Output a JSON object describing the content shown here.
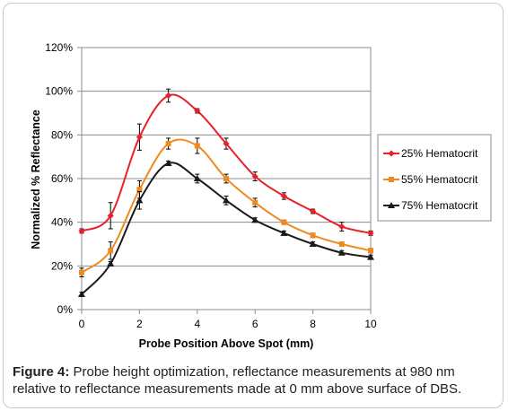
{
  "chart_data": {
    "type": "line",
    "xlabel": "Probe Position Above Spot (mm)",
    "ylabel": "Normalized % Reflectance",
    "xlim": [
      0,
      10
    ],
    "ylim": [
      0,
      120
    ],
    "xticks": [
      "0",
      "2",
      "4",
      "6",
      "8",
      "10"
    ],
    "yticks": [
      "0%",
      "20%",
      "40%",
      "60%",
      "80%",
      "100%",
      "120%"
    ],
    "grid": "horizontal",
    "legend_position": "right",
    "x": [
      0,
      1,
      2,
      3,
      4,
      5,
      6,
      7,
      8,
      9,
      10
    ],
    "series": [
      {
        "name": "25% Hematocrit",
        "color": "#e8202a",
        "marker": "diamond",
        "values": [
          36,
          43,
          79,
          98,
          91,
          76,
          61,
          52,
          45,
          38,
          35
        ],
        "errors": [
          1,
          6,
          6,
          3,
          1,
          2.5,
          2,
          1.5,
          1,
          2,
          1
        ]
      },
      {
        "name": "55% Hematocrit",
        "color": "#f08a1e",
        "marker": "square",
        "values": [
          17,
          27,
          55,
          76,
          75,
          60,
          49,
          40,
          34,
          30,
          27
        ],
        "errors": [
          2,
          4,
          4,
          2.5,
          3.5,
          2,
          2,
          1,
          1,
          1,
          1
        ]
      },
      {
        "name": "75% Hematocrit",
        "color": "#1a1a1a",
        "marker": "triangle",
        "values": [
          7,
          21,
          50,
          67,
          60,
          50,
          41,
          35,
          30,
          26,
          24
        ],
        "errors": [
          1,
          1,
          4,
          1,
          2,
          2,
          1,
          1,
          1,
          1,
          1
        ]
      }
    ]
  },
  "caption": {
    "label": "Figure 4:",
    "text": " Probe height optimization, reflectance measurements at 980 nm relative to reflectance measurements made at 0 mm above surface of DBS."
  }
}
